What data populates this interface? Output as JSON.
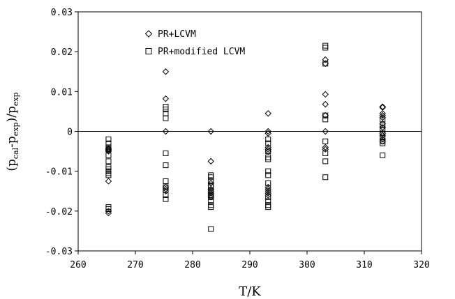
{
  "chart_data": {
    "type": "scatter",
    "xlabel": "T/K",
    "ylabel_parts": {
      "p1": "(p",
      "sub1": "cal",
      "p2": "-p",
      "sub2": "exp",
      "p3": ")/p",
      "sub3": "exp"
    },
    "xlim": [
      260,
      320
    ],
    "ylim": [
      -0.03,
      0.03
    ],
    "x_ticks": [
      260,
      270,
      280,
      290,
      300,
      310,
      320
    ],
    "x_tick_labels": [
      "260",
      "270",
      "280",
      "290",
      "300",
      "310",
      "320"
    ],
    "y_ticks": [
      0.03,
      0.02,
      0.01,
      0,
      -0.01,
      -0.02,
      -0.03
    ],
    "y_tick_labels": [
      "0.03",
      "0.02",
      "0.01",
      "0",
      "-0.01",
      "-0.02",
      "-0.03"
    ],
    "zero_line": true,
    "grid": false,
    "legend_position": "top-left",
    "series": [
      {
        "name": "PR+LCVM",
        "marker": "diamond",
        "points": [
          [
            265.3,
            -0.0043
          ],
          [
            265.3,
            -0.0045
          ],
          [
            265.3,
            -0.0048
          ],
          [
            265.3,
            -0.005
          ],
          [
            265.3,
            -0.0125
          ],
          [
            265.3,
            -0.02
          ],
          [
            265.3,
            -0.0205
          ],
          [
            275.3,
            0.015
          ],
          [
            275.3,
            0.0082
          ],
          [
            275.3,
            0.0
          ],
          [
            275.3,
            -0.014
          ],
          [
            275.3,
            -0.0145
          ],
          [
            275.3,
            -0.015
          ],
          [
            283.2,
            0.0
          ],
          [
            283.2,
            -0.0075
          ],
          [
            283.2,
            -0.013
          ],
          [
            283.2,
            -0.0145
          ],
          [
            283.2,
            -0.015
          ],
          [
            283.2,
            -0.0155
          ],
          [
            283.2,
            -0.016
          ],
          [
            283.2,
            -0.0165
          ],
          [
            293.2,
            0.0045
          ],
          [
            293.2,
            0.0
          ],
          [
            293.2,
            -0.0005
          ],
          [
            293.2,
            -0.004
          ],
          [
            293.2,
            -0.0045
          ],
          [
            293.2,
            -0.005
          ],
          [
            293.2,
            -0.014
          ],
          [
            293.2,
            -0.0145
          ],
          [
            293.2,
            -0.015
          ],
          [
            293.2,
            -0.0155
          ],
          [
            293.2,
            -0.016
          ],
          [
            303.2,
            0.018
          ],
          [
            303.2,
            0.017
          ],
          [
            303.2,
            0.0093
          ],
          [
            303.2,
            0.0068
          ],
          [
            303.2,
            0.004
          ],
          [
            303.2,
            0.0
          ],
          [
            303.2,
            -0.004
          ],
          [
            303.2,
            -0.0045
          ],
          [
            313.2,
            0.0062
          ],
          [
            313.2,
            0.006
          ],
          [
            313.2,
            0.0045
          ],
          [
            313.2,
            0.004
          ],
          [
            313.2,
            0.0035
          ],
          [
            313.2,
            0.002
          ],
          [
            313.2,
            0.001
          ],
          [
            313.2,
            -0.0005
          ],
          [
            313.2,
            -0.001
          ],
          [
            313.2,
            -0.002
          ],
          [
            313.2,
            -0.0025
          ]
        ]
      },
      {
        "name": "PR+modified LCVM",
        "marker": "square",
        "points": [
          [
            265.3,
            -0.002
          ],
          [
            265.3,
            -0.003
          ],
          [
            265.3,
            -0.004
          ],
          [
            265.3,
            -0.0045
          ],
          [
            265.3,
            -0.006
          ],
          [
            265.3,
            -0.0075
          ],
          [
            265.3,
            -0.009
          ],
          [
            265.3,
            -0.0095
          ],
          [
            265.3,
            -0.01
          ],
          [
            265.3,
            -0.0105
          ],
          [
            265.3,
            -0.011
          ],
          [
            265.3,
            -0.019
          ],
          [
            265.3,
            -0.0195
          ],
          [
            275.3,
            0.0062
          ],
          [
            275.3,
            0.0055
          ],
          [
            275.3,
            0.0045
          ],
          [
            275.3,
            0.0033
          ],
          [
            275.3,
            -0.0055
          ],
          [
            275.3,
            -0.0085
          ],
          [
            275.3,
            -0.0125
          ],
          [
            275.3,
            -0.014
          ],
          [
            275.3,
            -0.016
          ],
          [
            275.3,
            -0.017
          ],
          [
            283.2,
            -0.011
          ],
          [
            283.2,
            -0.0115
          ],
          [
            283.2,
            -0.0125
          ],
          [
            283.2,
            -0.0135
          ],
          [
            283.2,
            -0.014
          ],
          [
            283.2,
            -0.015
          ],
          [
            283.2,
            -0.016
          ],
          [
            283.2,
            -0.0165
          ],
          [
            283.2,
            -0.0175
          ],
          [
            283.2,
            -0.0185
          ],
          [
            283.2,
            -0.019
          ],
          [
            283.2,
            -0.0245
          ],
          [
            293.2,
            -0.002
          ],
          [
            293.2,
            -0.003
          ],
          [
            293.2,
            -0.005
          ],
          [
            293.2,
            -0.0065
          ],
          [
            293.2,
            -0.007
          ],
          [
            293.2,
            -0.01
          ],
          [
            293.2,
            -0.011
          ],
          [
            293.2,
            -0.013
          ],
          [
            293.2,
            -0.0165
          ],
          [
            293.2,
            -0.0175
          ],
          [
            293.2,
            -0.0185
          ],
          [
            293.2,
            -0.019
          ],
          [
            303.2,
            0.0215
          ],
          [
            303.2,
            0.021
          ],
          [
            303.2,
            0.017
          ],
          [
            303.2,
            0.004
          ],
          [
            303.2,
            0.003
          ],
          [
            303.2,
            -0.0025
          ],
          [
            303.2,
            -0.0055
          ],
          [
            303.2,
            -0.0075
          ],
          [
            303.2,
            -0.0115
          ],
          [
            313.2,
            0.003
          ],
          [
            313.2,
            0.0015
          ],
          [
            313.2,
            0.0005
          ],
          [
            313.2,
            -0.0005
          ],
          [
            313.2,
            -0.0015
          ],
          [
            313.2,
            -0.0025
          ],
          [
            313.2,
            -0.003
          ],
          [
            313.2,
            -0.006
          ]
        ]
      }
    ]
  }
}
